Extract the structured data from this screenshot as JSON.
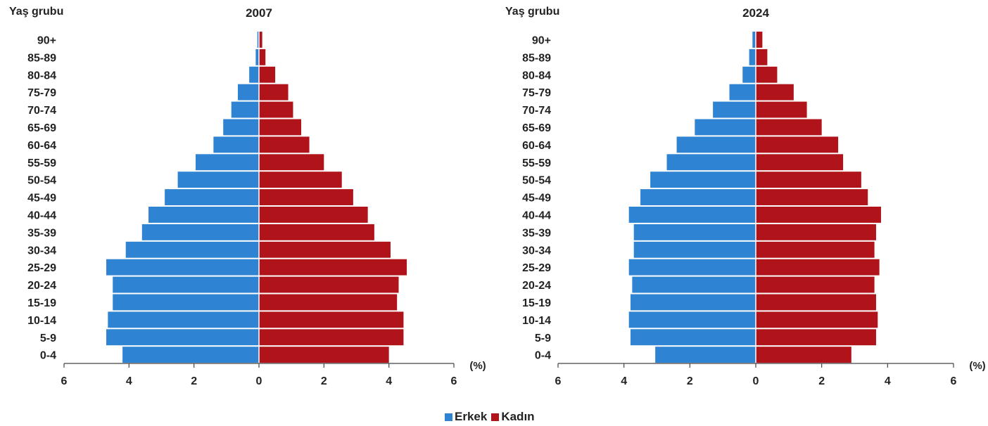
{
  "chart_data": [
    {
      "type": "bar",
      "title": "2007",
      "ylabel": "Yaş grubu",
      "unit_label": "(%)",
      "xlim": [
        -6,
        6
      ],
      "x_ticks": [
        "6",
        "4",
        "2",
        "0",
        "2",
        "4",
        "6"
      ],
      "categories": [
        "90+",
        "85-89",
        "80-84",
        "75-79",
        "70-74",
        "65-69",
        "60-64",
        "55-59",
        "50-54",
        "45-49",
        "40-44",
        "35-39",
        "30-34",
        "25-29",
        "20-24",
        "15-19",
        "10-14",
        "5-9",
        "0-4"
      ],
      "series": [
        {
          "name": "Erkek",
          "values": [
            0.05,
            0.1,
            0.3,
            0.65,
            0.85,
            1.1,
            1.4,
            1.95,
            2.5,
            2.9,
            3.4,
            3.6,
            4.1,
            4.7,
            4.5,
            4.5,
            4.65,
            4.7,
            4.2
          ]
        },
        {
          "name": "Kadın",
          "values": [
            0.1,
            0.2,
            0.5,
            0.9,
            1.05,
            1.3,
            1.55,
            2.0,
            2.55,
            2.9,
            3.35,
            3.55,
            4.05,
            4.55,
            4.3,
            4.25,
            4.45,
            4.45,
            4.0
          ]
        }
      ]
    },
    {
      "type": "bar",
      "title": "2024",
      "ylabel": "Yaş grubu",
      "unit_label": "(%)",
      "xlim": [
        -6,
        6
      ],
      "x_ticks": [
        "6",
        "4",
        "2",
        "0",
        "2",
        "4",
        "6"
      ],
      "categories": [
        "90+",
        "85-89",
        "80-84",
        "75-79",
        "70-74",
        "65-69",
        "60-64",
        "55-59",
        "50-54",
        "45-49",
        "40-44",
        "35-39",
        "30-34",
        "25-29",
        "20-24",
        "15-19",
        "10-14",
        "5-9",
        "0-4"
      ],
      "series": [
        {
          "name": "Erkek",
          "values": [
            0.1,
            0.2,
            0.4,
            0.8,
            1.3,
            1.85,
            2.4,
            2.7,
            3.2,
            3.5,
            3.85,
            3.7,
            3.7,
            3.85,
            3.75,
            3.8,
            3.85,
            3.8,
            3.05
          ]
        },
        {
          "name": "Kadın",
          "values": [
            0.2,
            0.35,
            0.65,
            1.15,
            1.55,
            2.0,
            2.5,
            2.65,
            3.2,
            3.4,
            3.8,
            3.65,
            3.6,
            3.75,
            3.6,
            3.65,
            3.7,
            3.65,
            2.9
          ]
        }
      ]
    }
  ],
  "legend": {
    "items": [
      {
        "label": "Erkek",
        "color": "#2e83d2"
      },
      {
        "label": "Kadın",
        "color": "#b01319"
      }
    ]
  },
  "colors": {
    "male": "#2e83d2",
    "female": "#b01319",
    "axis": "#444444",
    "text": "#222222"
  }
}
